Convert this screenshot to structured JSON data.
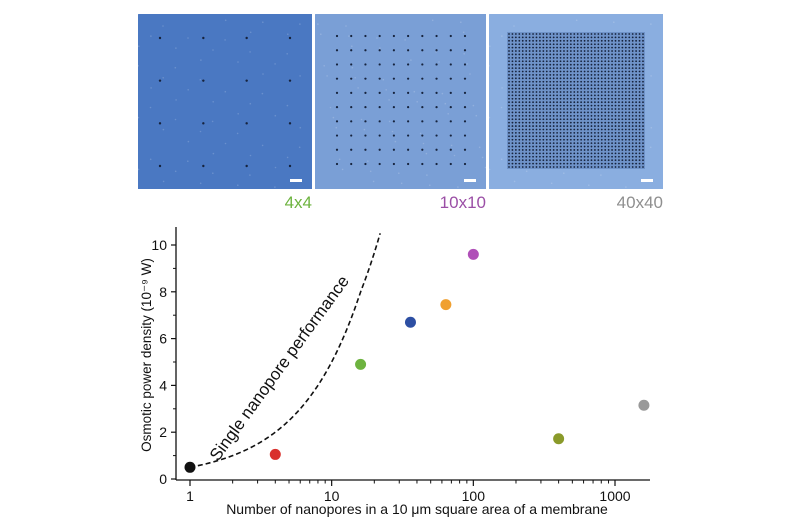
{
  "panels": [
    {
      "label": "4x4",
      "label_color": "#6db33f",
      "grid": 4,
      "bg": "#4a78c2"
    },
    {
      "label": "10x10",
      "label_color": "#9b4fa6",
      "grid": 10,
      "bg": "#7a9fd6"
    },
    {
      "label": "40x40",
      "label_color": "#8f8f8f",
      "grid": 40,
      "bg": "#8aaee0"
    }
  ],
  "chart_data": {
    "type": "scatter",
    "xlabel": "Number of nanopores in a 10 μm square area of a membrane",
    "ylabel": "Osmotic power density (10⁻⁹ W)",
    "xscale": "log",
    "xlim": [
      1,
      2000
    ],
    "ylim": [
      0,
      10.5
    ],
    "xticks": [
      1,
      10,
      100,
      1000
    ],
    "xtick_labels": [
      "1",
      "10",
      "100",
      "1000"
    ],
    "yticks": [
      0,
      2,
      4,
      6,
      8,
      10
    ],
    "ytick_labels": [
      "0",
      "2",
      "4",
      "6",
      "8",
      "10"
    ],
    "points": [
      {
        "x": 1,
        "y": 0.5,
        "color": "#111111"
      },
      {
        "x": 4,
        "y": 1.05,
        "color": "#d9302c"
      },
      {
        "x": 16,
        "y": 4.9,
        "color": "#6db33f"
      },
      {
        "x": 36,
        "y": 6.7,
        "color": "#2d4fa3"
      },
      {
        "x": 64,
        "y": 7.45,
        "color": "#f0a030"
      },
      {
        "x": 100,
        "y": 9.6,
        "color": "#b04fb8"
      },
      {
        "x": 400,
        "y": 1.72,
        "color": "#8a9a2a"
      },
      {
        "x": 1600,
        "y": 3.15,
        "color": "#999999"
      }
    ],
    "curve": {
      "label": "Single nanopore performance",
      "style": "dashed",
      "x": [
        1,
        2,
        4,
        8,
        16,
        22
      ],
      "y": [
        0.5,
        1.0,
        2.0,
        4.0,
        8.0,
        10.5
      ]
    }
  }
}
